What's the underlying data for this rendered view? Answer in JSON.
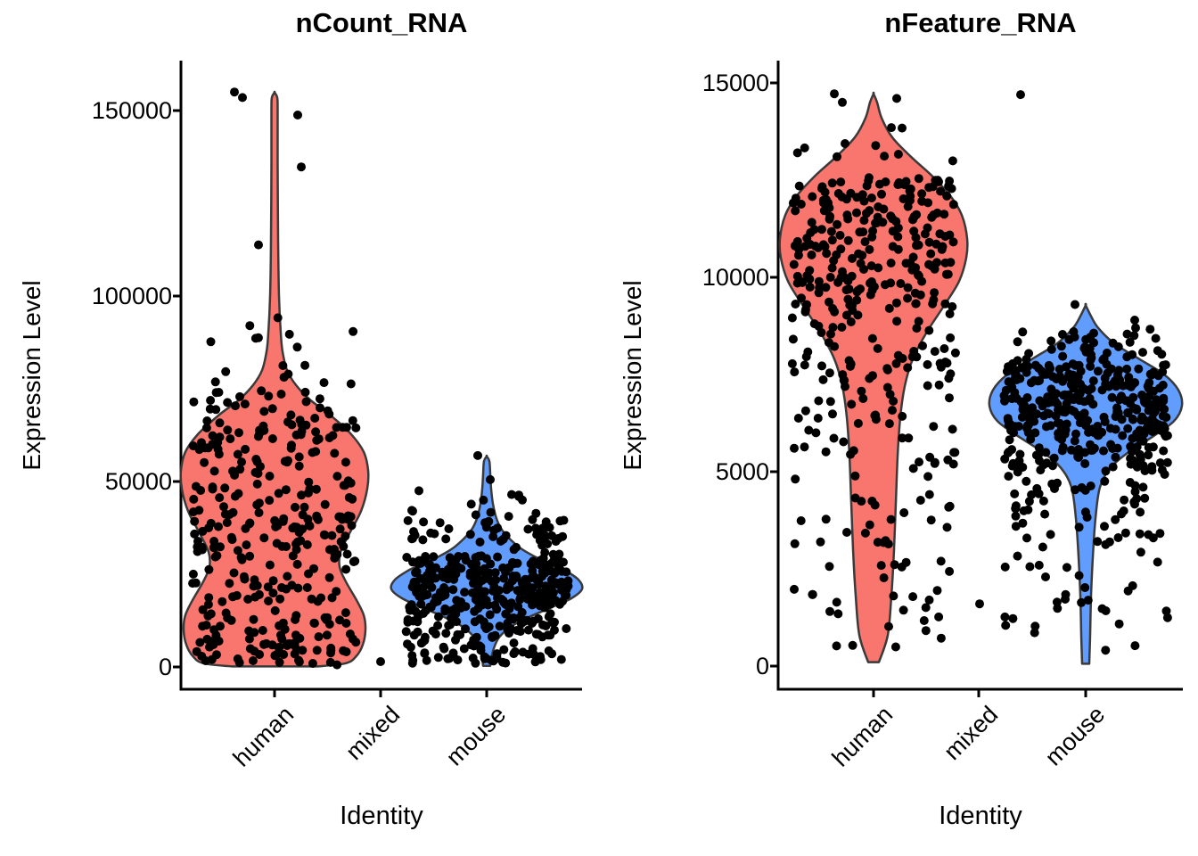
{
  "figure": {
    "panels": [
      {
        "title": "nCount_RNA",
        "xlabel": "Identity",
        "ylabel": "Expression Level",
        "x_ticks": [
          "human",
          "mixed",
          "mouse"
        ],
        "y_ticks": [
          "0",
          "50000",
          "100000",
          "150000"
        ]
      },
      {
        "title": "nFeature_RNA",
        "xlabel": "Identity",
        "ylabel": "Expression Level",
        "x_ticks": [
          "human",
          "mixed",
          "mouse"
        ],
        "y_ticks": [
          "0",
          "5000",
          "10000",
          "15000"
        ]
      }
    ]
  },
  "colors": {
    "human_violin": "#F8766D",
    "mouse_violin": "#619CFF",
    "violin_outline": "#3A3A3A",
    "point": "#000000",
    "axis": "#000000",
    "text": "#000000",
    "background": "#FFFFFF"
  },
  "chart_data": [
    {
      "type": "violin",
      "title": "nCount_RNA",
      "xlabel": "Identity",
      "ylabel": "Expression Level",
      "categories": [
        "human",
        "mixed",
        "mouse"
      ],
      "y_axis": {
        "ticks": [
          0,
          50000,
          100000,
          150000
        ],
        "range": [
          0,
          157000
        ],
        "grid": false
      },
      "legend": "none",
      "groups": [
        {
          "name": "human",
          "color": "#F8766D",
          "violin_profile": [
            [
              150,
              48
            ],
            [
              1000,
              80
            ],
            [
              3000,
              92
            ],
            [
              6000,
              99
            ],
            [
              10000,
              102
            ],
            [
              14000,
              100
            ],
            [
              18000,
              92
            ],
            [
              23000,
              80
            ],
            [
              27000,
              73
            ],
            [
              31000,
              74
            ],
            [
              36000,
              84
            ],
            [
              42000,
              97
            ],
            [
              48000,
              104
            ],
            [
              53000,
              105
            ],
            [
              58000,
              100
            ],
            [
              63000,
              85
            ],
            [
              68000,
              62
            ],
            [
              72000,
              40
            ],
            [
              76000,
              24
            ],
            [
              80000,
              14
            ],
            [
              85000,
              9
            ],
            [
              90000,
              7
            ],
            [
              100000,
              5
            ],
            [
              115000,
              4
            ],
            [
              135000,
              3.5
            ],
            [
              150000,
              3.5
            ],
            [
              153500,
              3
            ],
            [
              154900,
              0
            ]
          ],
          "clusters": [
            [
              60,
              500,
              10000
            ],
            [
              75,
              10000,
              30000
            ],
            [
              115,
              30000,
              55000
            ],
            [
              80,
              55000,
              75000
            ],
            [
              16,
              75000,
              95000
            ]
          ],
          "outliers": [
            [
              155000,
              -45
            ],
            [
              153500,
              -36
            ],
            [
              148800,
              26
            ],
            [
              134800,
              30
            ],
            [
              113800,
              -18
            ]
          ]
        },
        {
          "name": "mixed",
          "points": [
            [
              1450,
              0
            ]
          ]
        },
        {
          "name": "mouse",
          "color": "#619CFF",
          "violin_profile": [
            [
              300,
              4
            ],
            [
              2000,
              5
            ],
            [
              5000,
              8
            ],
            [
              8000,
              14
            ],
            [
              11000,
              28
            ],
            [
              13500,
              48
            ],
            [
              16000,
              72
            ],
            [
              18500,
              95
            ],
            [
              21000,
              107
            ],
            [
              23500,
              103
            ],
            [
              26000,
              88
            ],
            [
              28000,
              70
            ],
            [
              30000,
              52
            ],
            [
              32000,
              38
            ],
            [
              34500,
              26
            ],
            [
              37000,
              17
            ],
            [
              40000,
              11
            ],
            [
              44000,
              7
            ],
            [
              48000,
              5
            ],
            [
              52000,
              4
            ],
            [
              55500,
              3
            ],
            [
              56800,
              0
            ]
          ],
          "clusters": [
            [
              55,
              1000,
              8000
            ],
            [
              70,
              8000,
              15000
            ],
            [
              250,
              15000,
              30000
            ],
            [
              48,
              30000,
              40000
            ],
            [
              10,
              40000,
              47000
            ]
          ],
          "outliers": [
            [
              57000,
              -10
            ],
            [
              50500,
              4
            ],
            [
              47500,
              -76
            ],
            [
              46500,
              28
            ],
            [
              45000,
              40
            ]
          ]
        }
      ]
    },
    {
      "type": "violin",
      "title": "nFeature_RNA",
      "xlabel": "Identity",
      "ylabel": "Expression Level",
      "categories": [
        "human",
        "mixed",
        "mouse"
      ],
      "y_axis": {
        "ticks": [
          0,
          5000,
          10000,
          15000
        ],
        "range": [
          0,
          15200
        ],
        "grid": false
      },
      "legend": "none",
      "groups": [
        {
          "name": "human",
          "color": "#F8766D",
          "violin_profile": [
            [
              100,
              6
            ],
            [
              800,
              16
            ],
            [
              1800,
              20
            ],
            [
              3000,
              23
            ],
            [
              4200,
              25
            ],
            [
              5400,
              27
            ],
            [
              6400,
              30
            ],
            [
              7200,
              35
            ],
            [
              7900,
              44
            ],
            [
              8600,
              60
            ],
            [
              9300,
              80
            ],
            [
              9900,
              96
            ],
            [
              10500,
              104
            ],
            [
              11000,
              105
            ],
            [
              11600,
              99
            ],
            [
              12100,
              86
            ],
            [
              12600,
              66
            ],
            [
              13100,
              42
            ],
            [
              13600,
              21
            ],
            [
              14100,
              9
            ],
            [
              14500,
              4
            ],
            [
              14720,
              0
            ]
          ],
          "clusters": [
            [
              28,
              300,
              3000
            ],
            [
              45,
              3000,
              6000
            ],
            [
              80,
              6000,
              9000
            ],
            [
              225,
              9000,
              12500
            ],
            [
              8,
              12500,
              13400
            ]
          ],
          "outliers": [
            [
              14720,
              -44
            ],
            [
              14500,
              -35
            ],
            [
              14600,
              26
            ],
            [
              13850,
              20
            ],
            [
              13840,
              32
            ],
            [
              13440,
              -32
            ],
            [
              13100,
              -41
            ]
          ]
        },
        {
          "name": "mixed",
          "points": [
            [
              1600,
              1
            ]
          ]
        },
        {
          "name": "mouse",
          "color": "#619CFF",
          "violin_profile": [
            [
              60,
              4
            ],
            [
              800,
              5
            ],
            [
              1800,
              6
            ],
            [
              2800,
              8
            ],
            [
              3800,
              11
            ],
            [
              4600,
              16
            ],
            [
              5100,
              28
            ],
            [
              5500,
              48
            ],
            [
              5900,
              75
            ],
            [
              6300,
              99
            ],
            [
              6700,
              108
            ],
            [
              7100,
              104
            ],
            [
              7500,
              88
            ],
            [
              7900,
              60
            ],
            [
              8300,
              32
            ],
            [
              8700,
              14
            ],
            [
              9000,
              6
            ],
            [
              9280,
              0
            ]
          ],
          "clusters": [
            [
              30,
              300,
              3000
            ],
            [
              55,
              3000,
              5000
            ],
            [
              85,
              5000,
              6000
            ],
            [
              250,
              6000,
              7800
            ],
            [
              40,
              7800,
              8700
            ]
          ],
          "outliers": [
            [
              9300,
              -12
            ],
            [
              8900,
              55
            ],
            [
              14700,
              -73
            ]
          ]
        }
      ]
    }
  ]
}
